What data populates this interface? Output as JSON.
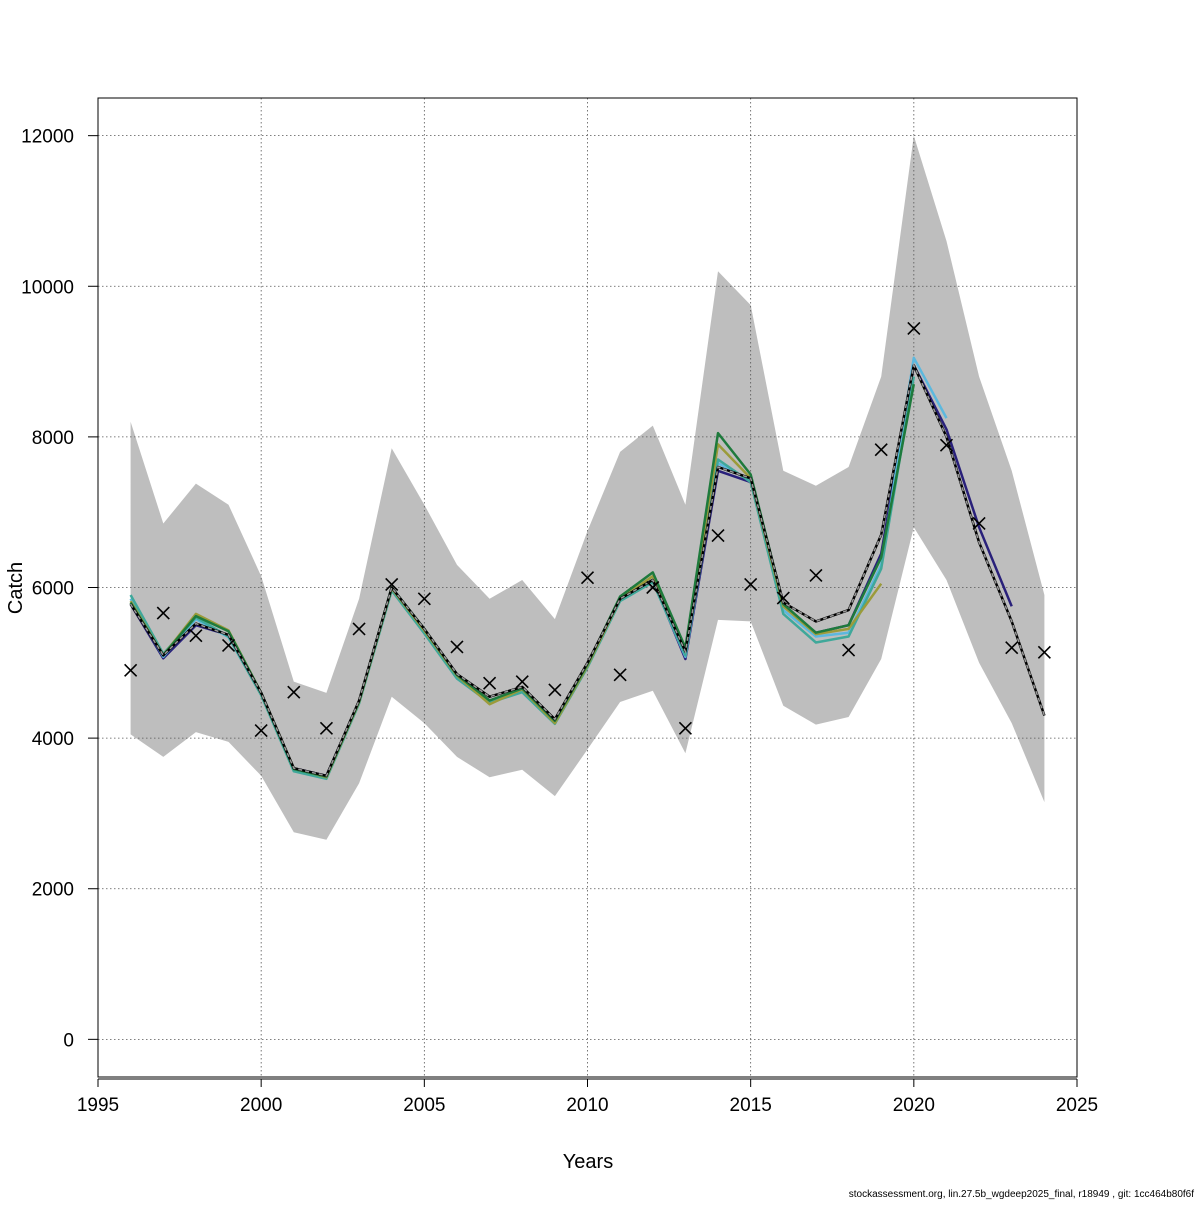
{
  "footer": "stockassessment.org, lin.27.5b_wgdeep2025_final, r18949 , git: 1cc464b80f6f",
  "colors": {
    "band": "#bebebe",
    "grid": "#555555",
    "observed": "#000000",
    "final": "#000000",
    "final_overlay": "#999999"
  },
  "chart_data": {
    "type": "line",
    "xlabel": "Years",
    "ylabel": "Catch",
    "xlim": [
      1995,
      2025
    ],
    "ylim": [
      -500,
      12500
    ],
    "grid": true,
    "x_ticks": [
      1995,
      2000,
      2005,
      2010,
      2015,
      2020,
      2025
    ],
    "y_ticks": [
      0,
      2000,
      4000,
      6000,
      8000,
      10000,
      12000
    ],
    "x_tick_labels": [
      "1995",
      "2000",
      "2005",
      "2010",
      "2015",
      "2020",
      "2025"
    ],
    "y_tick_labels": [
      "0",
      "2000",
      "4000",
      "6000",
      "8000",
      "10000",
      "12000"
    ],
    "confidence_band": {
      "years": [
        1996,
        1997,
        1998,
        1999,
        2000,
        2001,
        2002,
        2003,
        2004,
        2005,
        2006,
        2007,
        2008,
        2009,
        2010,
        2011,
        2012,
        2013,
        2014,
        2015,
        2016,
        2017,
        2018,
        2019,
        2020,
        2021,
        2022,
        2023,
        2024
      ],
      "upper": [
        8200,
        6850,
        7380,
        7100,
        6150,
        4750,
        4600,
        5850,
        7850,
        7100,
        6300,
        5850,
        6100,
        5580,
        6750,
        7800,
        8150,
        7100,
        10200,
        9750,
        7550,
        7350,
        7600,
        8800,
        12000,
        10600,
        8800,
        7550,
        5900
      ],
      "lower": [
        4050,
        3750,
        4080,
        3950,
        3500,
        2750,
        2650,
        3400,
        4550,
        4200,
        3750,
        3480,
        3580,
        3230,
        3850,
        4480,
        4630,
        3800,
        5570,
        5550,
        4430,
        4180,
        4280,
        5050,
        6800,
        6100,
        5000,
        4200,
        3150
      ]
    },
    "observed": {
      "years": [
        1996,
        1997,
        1998,
        1999,
        2000,
        2001,
        2002,
        2003,
        2004,
        2005,
        2006,
        2007,
        2008,
        2009,
        2010,
        2011,
        2012,
        2013,
        2014,
        2015,
        2016,
        2017,
        2018,
        2019,
        2020,
        2021,
        2022,
        2023,
        2024
      ],
      "values": [
        4900,
        5660,
        5360,
        5230,
        4100,
        4610,
        4130,
        5450,
        6040,
        5850,
        5210,
        4730,
        4750,
        4640,
        6130,
        4840,
        6000,
        4130,
        6690,
        6040,
        5860,
        6160,
        5170,
        7830,
        9440,
        7890,
        6850,
        5200,
        5140
      ]
    },
    "final_fit": {
      "years": [
        1996,
        1997,
        1998,
        1999,
        2000,
        2001,
        2002,
        2003,
        2004,
        2005,
        2006,
        2007,
        2008,
        2009,
        2010,
        2011,
        2012,
        2013,
        2014,
        2015,
        2016,
        2017,
        2018,
        2019,
        2020,
        2021,
        2022,
        2023,
        2024
      ],
      "values": [
        5780,
        5100,
        5520,
        5370,
        4600,
        3600,
        3500,
        4500,
        6000,
        5450,
        4850,
        4550,
        4680,
        4250,
        5000,
        5850,
        6100,
        5150,
        7600,
        7450,
        5800,
        5550,
        5700,
        6700,
        8950,
        8000,
        6600,
        5550,
        4300
      ]
    },
    "series": [
      {
        "color": "#29207a",
        "years": [
          1996,
          1997,
          1998,
          1999,
          2000,
          2001,
          2002,
          2003,
          2004,
          2005,
          2006,
          2007,
          2008,
          2009,
          2010,
          2011,
          2012,
          2013,
          2014,
          2015,
          2016,
          2017,
          2018,
          2019,
          2020,
          2021,
          2022,
          2023
        ],
        "values": [
          5780,
          5060,
          5500,
          5370,
          4600,
          3600,
          3500,
          4480,
          5980,
          5420,
          4820,
          4500,
          4650,
          4220,
          4990,
          5850,
          6100,
          5050,
          7550,
          7400,
          5750,
          5400,
          5500,
          6450,
          8950,
          8100,
          6800,
          5750
        ]
      },
      {
        "color": "#5cb8de",
        "years": [
          1996,
          1997,
          1998,
          1999,
          2000,
          2001,
          2002,
          2003,
          2004,
          2005,
          2006,
          2007,
          2008,
          2009,
          2010,
          2011,
          2012,
          2013,
          2014,
          2015,
          2016,
          2017,
          2018,
          2019,
          2020,
          2021
        ],
        "values": [
          5850,
          5080,
          5580,
          5340,
          4580,
          3580,
          3480,
          4470,
          5970,
          5400,
          4800,
          4480,
          4620,
          4200,
          4950,
          5830,
          6080,
          5080,
          7650,
          7420,
          5700,
          5350,
          5400,
          6300,
          9050,
          8250
        ]
      },
      {
        "color": "#3fa89a",
        "years": [
          1996,
          1997,
          1998,
          1999,
          2000,
          2001,
          2002,
          2003,
          2004,
          2005,
          2006,
          2007,
          2008,
          2009,
          2010,
          2011,
          2012,
          2013,
          2014,
          2015,
          2016,
          2017,
          2018,
          2019,
          2020
        ],
        "values": [
          5900,
          5120,
          5600,
          5350,
          4570,
          3560,
          3460,
          4460,
          5960,
          5390,
          4790,
          4470,
          4610,
          4190,
          4940,
          5820,
          6070,
          5100,
          7700,
          7400,
          5650,
          5270,
          5350,
          6250,
          8800
        ]
      },
      {
        "color": "#9b9b3a",
        "years": [
          1996,
          1997,
          1998,
          1999,
          2000,
          2001,
          2002,
          2003,
          2004,
          2005,
          2006,
          2007,
          2008,
          2009,
          2010,
          2011,
          2012,
          2013,
          2014,
          2015,
          2016,
          2017,
          2018,
          2019
        ],
        "values": [
          5820,
          5100,
          5650,
          5430,
          4600,
          3600,
          3480,
          4480,
          5990,
          5430,
          4830,
          4450,
          4650,
          4200,
          4960,
          5850,
          6150,
          5180,
          7900,
          7450,
          5750,
          5380,
          5450,
          6050
        ]
      },
      {
        "color": "#1e7a3c",
        "years": [
          1996,
          1997,
          1998,
          1999,
          2000,
          2001,
          2002,
          2003,
          2004,
          2005,
          2006,
          2007,
          2008,
          2009,
          2010,
          2011,
          2012,
          2013,
          2014,
          2015,
          2016,
          2017,
          2018,
          2019,
          2020
        ],
        "values": [
          5800,
          5100,
          5620,
          5420,
          4600,
          3590,
          3490,
          4490,
          6000,
          5450,
          4840,
          4500,
          4660,
          4230,
          4980,
          5880,
          6200,
          5200,
          8050,
          7500,
          5780,
          5400,
          5500,
          6400,
          8700
        ]
      }
    ]
  }
}
